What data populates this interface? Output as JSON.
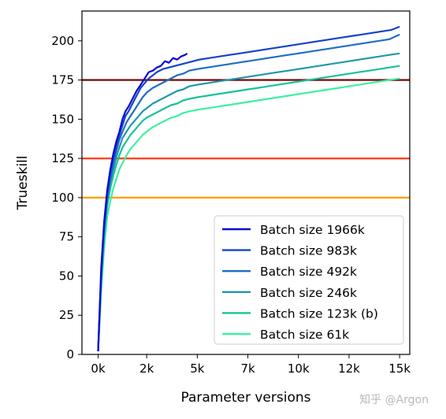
{
  "chart_data": {
    "type": "line",
    "xlabel": "Parameter versions",
    "ylabel": "Trueskill",
    "xlim": [
      -800,
      15400
    ],
    "ylim": [
      0,
      219
    ],
    "xticks": [
      {
        "value": 0,
        "label": "0k"
      },
      {
        "value": 2400,
        "label": "2k"
      },
      {
        "value": 4900,
        "label": "5k"
      },
      {
        "value": 7400,
        "label": "7k"
      },
      {
        "value": 9900,
        "label": "10k"
      },
      {
        "value": 12400,
        "label": "12k"
      },
      {
        "value": 14900,
        "label": "15k"
      }
    ],
    "yticks": [
      0,
      25,
      50,
      75,
      100,
      125,
      150,
      175,
      200
    ],
    "grid": false,
    "legend_position": "lower-right",
    "reference_lines": [
      {
        "y": 175,
        "color": "#7a1010"
      },
      {
        "y": 125,
        "color": "#ff4422"
      },
      {
        "y": 100,
        "color": "#ffa000"
      }
    ],
    "series": [
      {
        "name": "Batch size 1966k",
        "color": "#0a0ad2",
        "x": [
          0,
          150,
          300,
          450,
          600,
          750,
          900,
          1050,
          1200,
          1350,
          1500,
          1700,
          1900,
          2100,
          2300,
          2500,
          2700,
          2900,
          3100,
          3300,
          3500,
          3700,
          3900,
          4100,
          4300,
          4400
        ],
        "y": [
          2,
          55,
          85,
          105,
          118,
          128,
          136,
          142,
          150,
          155,
          158,
          163,
          168,
          172,
          176,
          180,
          181,
          183,
          184,
          187,
          186,
          189,
          188,
          190,
          191,
          192
        ]
      },
      {
        "name": "Batch size 983k",
        "color": "#1343ca",
        "x": [
          0,
          150,
          300,
          450,
          600,
          750,
          900,
          1050,
          1200,
          1350,
          1500,
          1700,
          1900,
          2100,
          2300,
          2500,
          2700,
          2900,
          3200,
          3500,
          3800,
          4100,
          4400,
          4700,
          5000,
          5500,
          6000,
          6500,
          7000,
          7500,
          8000,
          8500,
          9000,
          9500,
          10000,
          10500,
          11000,
          11500,
          12000,
          12500,
          13000,
          13500,
          14000,
          14500,
          14900
        ],
        "y": [
          2,
          52,
          82,
          102,
          115,
          125,
          133,
          140,
          146,
          152,
          155,
          160,
          165,
          170,
          173,
          176,
          178,
          180,
          182,
          183,
          184,
          185,
          186,
          187,
          188,
          189,
          190,
          191,
          192,
          193,
          194,
          195,
          196,
          197,
          198,
          199,
          200,
          201,
          202,
          203,
          204,
          205,
          206,
          207,
          209
        ]
      },
      {
        "name": "Batch size 492k",
        "color": "#1f6ec4",
        "x": [
          0,
          150,
          300,
          450,
          600,
          750,
          900,
          1050,
          1200,
          1400,
          1600,
          1800,
          2000,
          2200,
          2400,
          2700,
          3000,
          3300,
          3600,
          3900,
          4200,
          4500,
          4900,
          5400,
          5900,
          6400,
          6900,
          7400,
          7900,
          8400,
          8900,
          9400,
          9900,
          10400,
          10900,
          11400,
          11900,
          12400,
          12900,
          13400,
          13900,
          14400,
          14900
        ],
        "y": [
          2,
          50,
          80,
          100,
          112,
          122,
          130,
          137,
          142,
          148,
          152,
          156,
          160,
          164,
          167,
          170,
          172,
          174,
          176,
          178,
          179,
          181,
          182,
          183,
          184,
          185,
          186,
          187,
          188,
          189,
          190,
          191,
          192,
          193,
          194,
          195,
          196,
          197,
          198,
          199,
          200,
          201,
          204
        ]
      },
      {
        "name": "Batch size 246k",
        "color": "#1f99a8",
        "x": [
          0,
          150,
          300,
          450,
          600,
          750,
          900,
          1050,
          1200,
          1400,
          1600,
          1800,
          2000,
          2200,
          2400,
          2700,
          3000,
          3300,
          3600,
          3900,
          4200,
          4500,
          4900,
          5400,
          5900,
          6400,
          6900,
          7400,
          7900,
          8400,
          8900,
          9400,
          9900,
          10400,
          10900,
          11400,
          11900,
          12400,
          12900,
          13400,
          13900,
          14400,
          14900
        ],
        "y": [
          2,
          48,
          78,
          98,
          110,
          118,
          126,
          132,
          138,
          142,
          146,
          149,
          152,
          155,
          157,
          160,
          162,
          164,
          166,
          168,
          169,
          171,
          172,
          173,
          174,
          175,
          176,
          177,
          178,
          179,
          180,
          181,
          182,
          183,
          184,
          185,
          186,
          187,
          188,
          189,
          190,
          191,
          192
        ]
      },
      {
        "name": "Batch size 123k (b)",
        "color": "#18c296",
        "x": [
          0,
          150,
          300,
          450,
          600,
          750,
          900,
          1050,
          1200,
          1400,
          1600,
          1800,
          2000,
          2200,
          2400,
          2700,
          3000,
          3300,
          3600,
          3900,
          4200,
          4500,
          4900,
          5400,
          5900,
          6400,
          6900,
          7400,
          7900,
          8400,
          8900,
          9400,
          9900,
          10400,
          10900,
          11400,
          11900,
          12400,
          12900,
          13400,
          13900,
          14400,
          14900
        ],
        "y": [
          2,
          45,
          75,
          95,
          106,
          114,
          121,
          127,
          132,
          136,
          140,
          143,
          146,
          149,
          151,
          153,
          155,
          157,
          159,
          160,
          162,
          163,
          164,
          165,
          166,
          167,
          168,
          169,
          170,
          171,
          172,
          173,
          174,
          175,
          176,
          177,
          178,
          179,
          180,
          181,
          182,
          183,
          184
        ]
      },
      {
        "name": "Batch size 61k",
        "color": "#3ef0a0",
        "x": [
          0,
          150,
          300,
          450,
          600,
          750,
          900,
          1050,
          1200,
          1400,
          1600,
          1800,
          2000,
          2200,
          2400,
          2700,
          3000,
          3300,
          3600,
          3900,
          4200,
          4500,
          4900,
          5400,
          5900,
          6400,
          6900,
          7400,
          7900,
          8400,
          8900,
          9400,
          9900,
          10400,
          10900,
          11400,
          11900,
          12400,
          12900,
          13400,
          13900,
          14400,
          14900
        ],
        "y": [
          2,
          40,
          68,
          88,
          98,
          106,
          112,
          118,
          122,
          127,
          131,
          134,
          137,
          140,
          142,
          145,
          147,
          149,
          151,
          152,
          154,
          155,
          156,
          157,
          158,
          159,
          160,
          161,
          162,
          163,
          164,
          165,
          166,
          167,
          168,
          169,
          170,
          171,
          172,
          173,
          174,
          175,
          176
        ]
      }
    ]
  },
  "watermark": "知乎 @Argon"
}
